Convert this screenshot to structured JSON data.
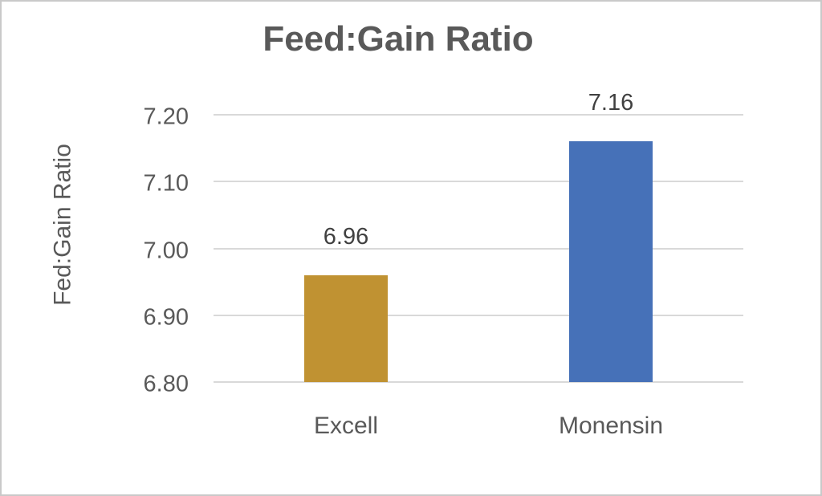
{
  "chart_data": {
    "type": "bar",
    "title": "Feed:Gain Ratio",
    "ylabel": "Fed:Gain Ratio",
    "xlabel": "",
    "categories": [
      "Excell",
      "Monensin"
    ],
    "values": [
      6.96,
      7.16
    ],
    "data_labels": [
      "6.96",
      "7.16"
    ],
    "bar_colors": [
      "#C09232",
      "#4671B8"
    ],
    "ylim": [
      6.8,
      7.2
    ],
    "yticks": [
      6.8,
      6.9,
      7.0,
      7.1,
      7.2
    ],
    "ytick_labels": [
      "6.80",
      "6.90",
      "7.00",
      "7.10",
      "7.20"
    ],
    "grid": true,
    "legend": false,
    "colors": {
      "title_text": "#595959",
      "axis_text": "#595959",
      "data_label_text": "#404040",
      "gridline": "#D9D9D9",
      "canvas_border": "#C9C9C9",
      "background": "#FFFFFF"
    }
  }
}
